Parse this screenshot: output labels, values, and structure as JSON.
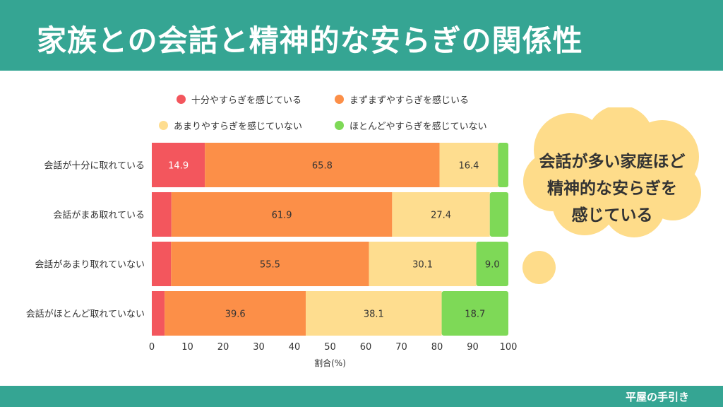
{
  "header": {
    "title": "家族との会話と精神的な安らぎの関係性"
  },
  "footer": {
    "brand": "平屋の手引き"
  },
  "callout": {
    "lines": [
      "会話が多い家庭ほど",
      "精神的な安らぎを",
      "感じている"
    ]
  },
  "colors": {
    "header": "#35a593",
    "series": [
      "#f3565d",
      "#fc8f48",
      "#fedd8f",
      "#7ed957"
    ],
    "bubble": "#fedc8a"
  },
  "chart_data": {
    "type": "bar",
    "orientation": "horizontal",
    "stacked": true,
    "categories": [
      "会話が十分に取れている",
      "会話がまあ取れている",
      "会話があまり取れていない",
      "会話がほとんど取れていない"
    ],
    "series": [
      {
        "name": "十分やすらぎを感じている",
        "values": [
          14.9,
          5.5,
          5.4,
          3.6
        ],
        "labels": [
          "14.9",
          "",
          "",
          ""
        ]
      },
      {
        "name": "まずまずやすらぎを感じいる",
        "values": [
          65.8,
          61.9,
          55.5,
          39.6
        ],
        "labels": [
          "65.8",
          "61.9",
          "55.5",
          "39.6"
        ]
      },
      {
        "name": "あまりやすらぎを感じていない",
        "values": [
          16.4,
          27.4,
          30.1,
          38.1
        ],
        "labels": [
          "16.4",
          "27.4",
          "30.1",
          "38.1"
        ]
      },
      {
        "name": "ほとんどやすらぎを感じていない",
        "values": [
          2.9,
          5.2,
          9.0,
          18.7
        ],
        "labels": [
          "",
          "",
          "9.0",
          "18.7"
        ]
      }
    ],
    "xlabel": "割合(%)",
    "ylabel": "",
    "xlim": [
      0,
      100
    ],
    "xticks": [
      0,
      10,
      20,
      30,
      40,
      50,
      60,
      70,
      80,
      90,
      100
    ],
    "grid": false,
    "legend": "top"
  }
}
